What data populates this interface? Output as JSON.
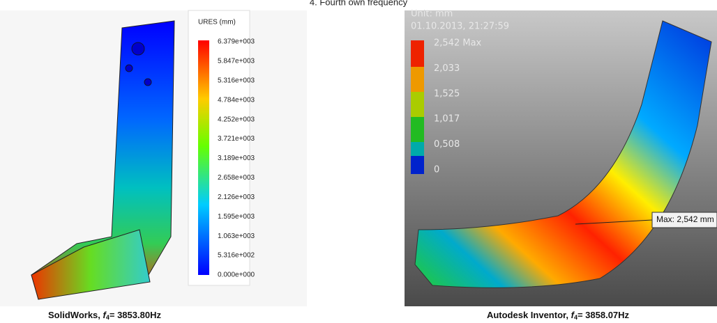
{
  "title": "4. Fourth own frequency",
  "left": {
    "legend_title": "URES (mm)",
    "legend_labels": [
      "6.379e+003",
      "5.847e+003",
      "5.316e+003",
      "4.784e+003",
      "4.252e+003",
      "3.721e+003",
      "3.189e+003",
      "2.658e+003",
      "2.126e+003",
      "1.595e+003",
      "1.063e+003",
      "5.316e+002",
      "0.000e+000"
    ],
    "caption": {
      "prefix": "SolidWorks, ",
      "symbol": "f",
      "subscript": "4",
      "value": "= 3853.80Hz"
    }
  },
  "right": {
    "unit": "Unit: mm",
    "date": "01.10.2013, 21:27:59",
    "legend_labels": [
      "2,542 Max",
      "2,033",
      "1,525",
      "1,017",
      "0,508",
      "0"
    ],
    "max_annotation": "Max: 2,542 mm",
    "caption": {
      "prefix": "Autodesk Inventor, ",
      "symbol": "f",
      "subscript": "4",
      "value": "= 3858.07Hz"
    }
  }
}
